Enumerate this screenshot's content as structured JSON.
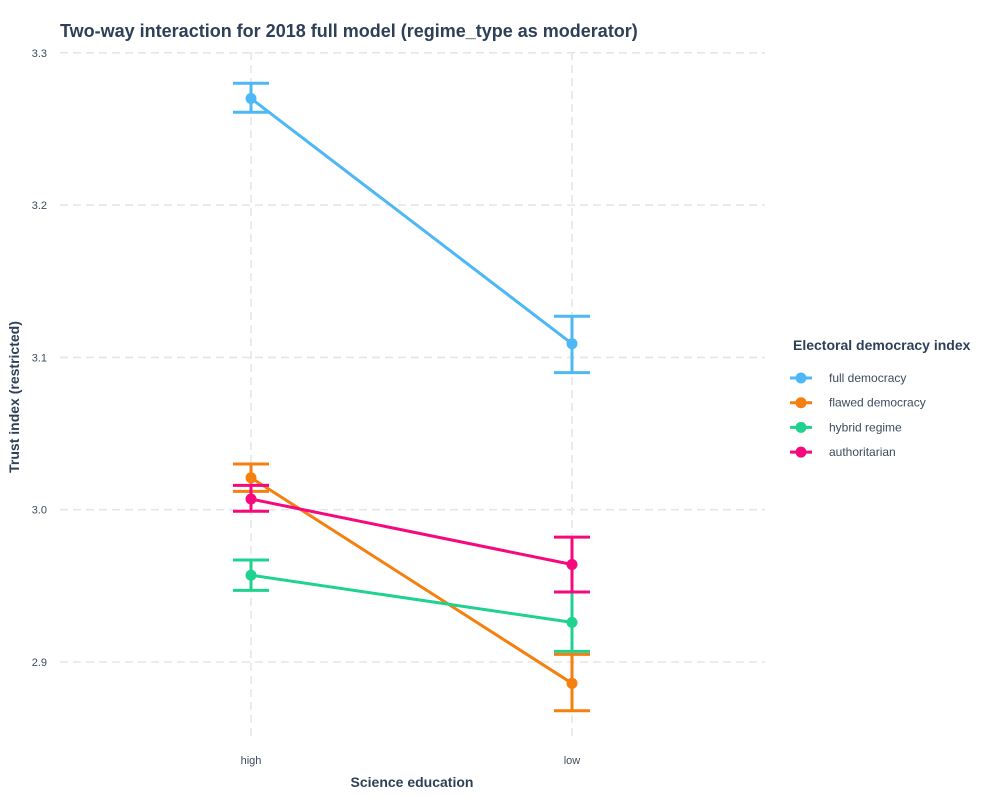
{
  "chart_data": {
    "type": "line",
    "title": "Two-way interaction for 2018 full model (regime_type as moderator)",
    "xlabel": "Science education",
    "ylabel": "Trust index (restricted)",
    "categories": [
      "high",
      "low"
    ],
    "ylim": [
      2.85,
      3.3
    ],
    "yticks": [
      2.9,
      3.0,
      3.1,
      3.2,
      3.3
    ],
    "ytick_labels": [
      "2.9",
      "3.0",
      "3.1",
      "3.2",
      "3.3"
    ],
    "grid": true,
    "legend": {
      "title": "Electoral democracy index",
      "position": "right"
    },
    "series": [
      {
        "name": "full democracy",
        "color": "#4db8f5",
        "values": [
          3.27,
          3.109
        ],
        "lower": [
          3.261,
          3.09
        ],
        "upper": [
          3.28,
          3.127
        ]
      },
      {
        "name": "flawed democracy",
        "color": "#f57f0f",
        "values": [
          3.021,
          2.886
        ],
        "lower": [
          3.012,
          2.868
        ],
        "upper": [
          3.03,
          2.905
        ]
      },
      {
        "name": "hybrid regime",
        "color": "#1fd28f",
        "values": [
          2.957,
          2.926
        ],
        "lower": [
          2.947,
          2.907
        ],
        "upper": [
          2.967,
          2.946
        ]
      },
      {
        "name": "authoritarian",
        "color": "#f5097c",
        "values": [
          3.007,
          2.964
        ],
        "lower": [
          2.999,
          2.946
        ],
        "upper": [
          3.016,
          2.982
        ]
      }
    ]
  }
}
